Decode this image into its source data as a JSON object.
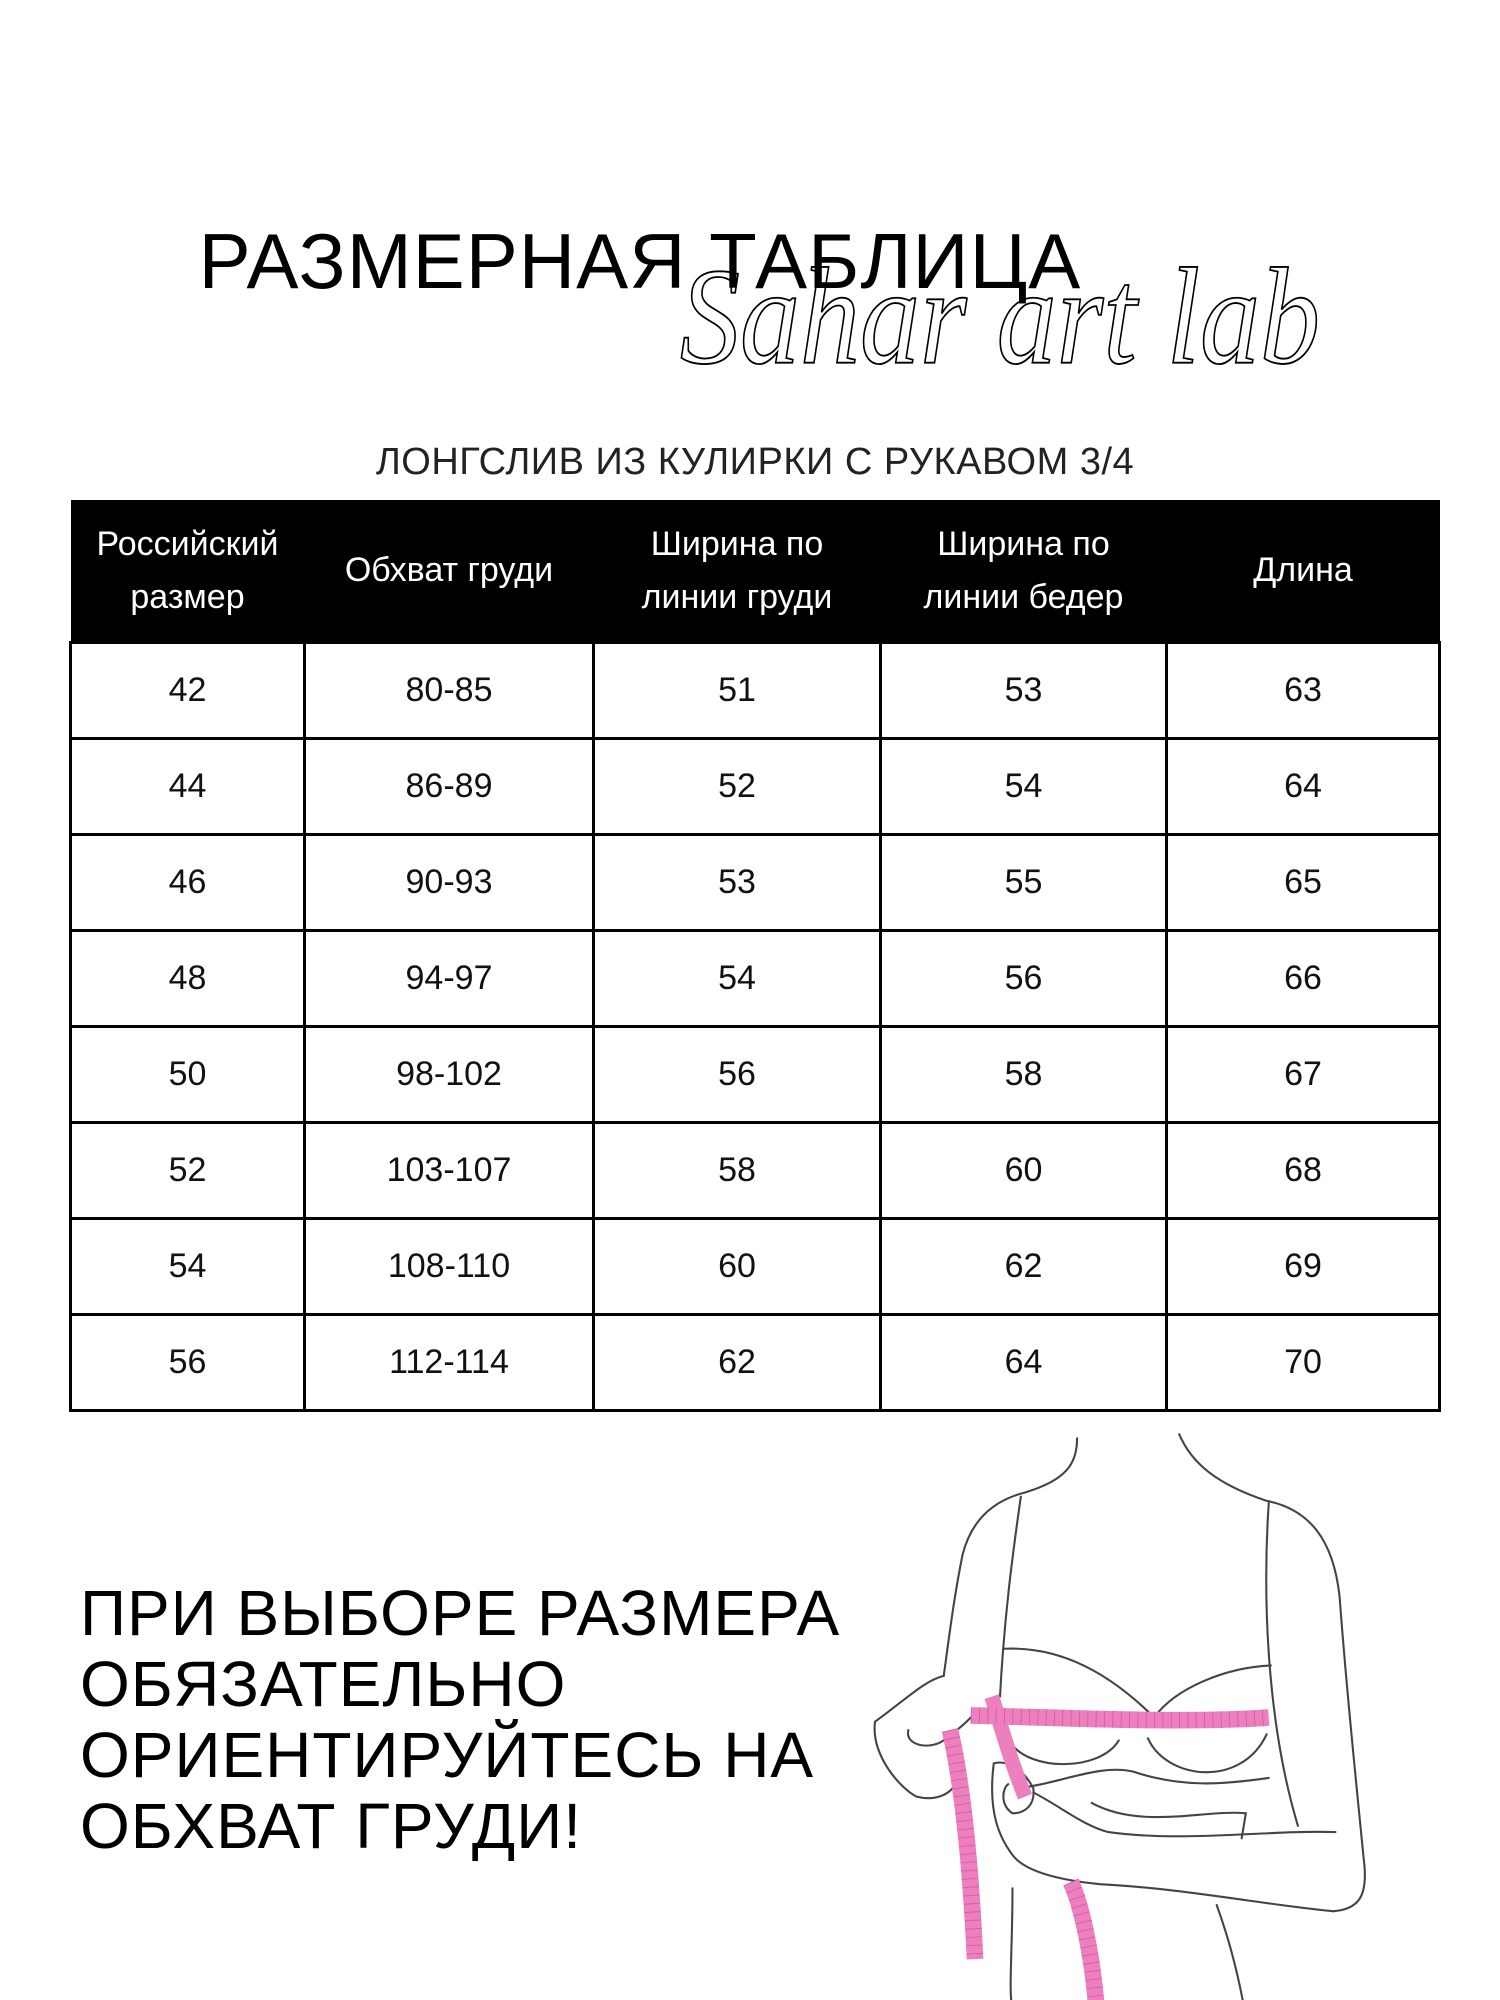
{
  "title": "РАЗМЕРНАЯ ТАБЛИЦА",
  "brand": "Sahar art lab",
  "subtitle": "ЛОНГСЛИВ ИЗ КУЛИРКИ С РУКАВОМ 3/4",
  "table": {
    "headers": [
      [
        "Российский",
        "размер"
      ],
      [
        "Обхват груди"
      ],
      [
        "Ширина по",
        "линии груди"
      ],
      [
        "Ширина по",
        "линии бедер"
      ],
      [
        "Длина"
      ]
    ],
    "rows": [
      [
        "42",
        "80-85",
        "51",
        "53",
        "63"
      ],
      [
        "44",
        "86-89",
        "52",
        "54",
        "64"
      ],
      [
        "46",
        "90-93",
        "53",
        "55",
        "65"
      ],
      [
        "48",
        "94-97",
        "54",
        "56",
        "66"
      ],
      [
        "50",
        "98-102",
        "56",
        "58",
        "67"
      ],
      [
        "52",
        "103-107",
        "58",
        "60",
        "68"
      ],
      [
        "54",
        "108-110",
        "60",
        "62",
        "69"
      ],
      [
        "56",
        "112-114",
        "62",
        "64",
        "70"
      ]
    ]
  },
  "note": [
    "ПРИ ВЫБОРЕ РАЗМЕРА",
    "ОБЯЗАТЕЛЬНО",
    "ОРИЕНТИРУЙТЕСЬ НА",
    "ОБХВАТ ГРУДИ!"
  ],
  "colors": {
    "header_bg": "#000000",
    "tape": "#ee7fbf"
  },
  "illustration": "bust-measurement-icon"
}
